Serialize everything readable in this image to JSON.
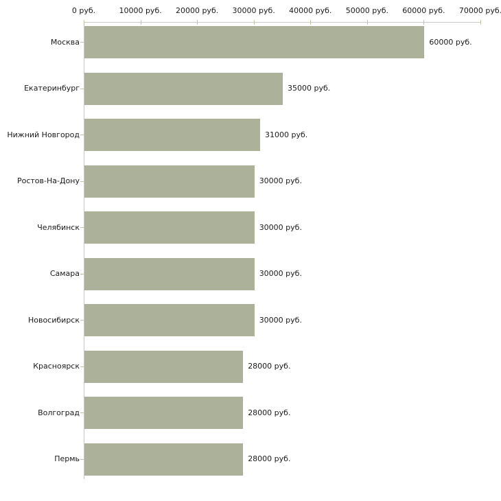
{
  "chart_data": {
    "type": "bar",
    "orientation": "horizontal",
    "title": "",
    "xlabel": "",
    "ylabel": "",
    "grid": false,
    "legend": false,
    "categories": [
      "Москва",
      "Екатеринбург",
      "Нижний Новгород",
      "Ростов-На-Дону",
      "Челябинск",
      "Самара",
      "Новосибирск",
      "Красноярск",
      "Волгоград",
      "Пермь"
    ],
    "values": [
      60000,
      35000,
      31000,
      30000,
      30000,
      30000,
      30000,
      28000,
      28000,
      28000
    ],
    "value_labels": [
      "60000 руб.",
      "35000 руб.",
      "31000 руб.",
      "30000 руб.",
      "30000 руб.",
      "30000 руб.",
      "30000 руб.",
      "28000 руб.",
      "28000 руб.",
      "28000 руб."
    ],
    "x_ticks": [
      0,
      10000,
      20000,
      30000,
      40000,
      50000,
      60000,
      70000
    ],
    "x_tick_labels": [
      "0 руб.",
      "10000 руб.",
      "20000 руб.",
      "30000 руб.",
      "40000 руб.",
      "50000 руб.",
      "60000 руб.",
      "70000 руб."
    ],
    "xlim": [
      0,
      70000
    ],
    "unit_suffix": " руб.",
    "colors": {
      "bar_fill": "#acb299",
      "axis_line": "#c9c9c9",
      "tick_mark": "#c2c2a0",
      "text": "#1a1a1a",
      "background": "#ffffff"
    }
  }
}
